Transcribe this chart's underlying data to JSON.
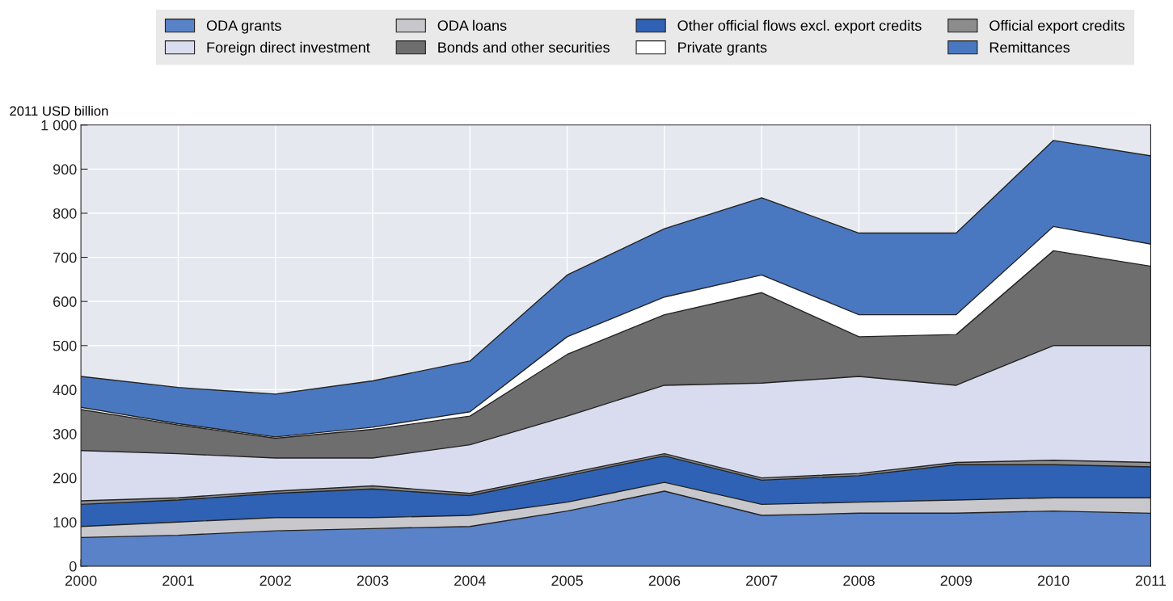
{
  "chart_data": {
    "type": "area",
    "stacked": true,
    "ylabel": "2011 USD billion",
    "x": [
      2000,
      2001,
      2002,
      2003,
      2004,
      2005,
      2006,
      2007,
      2008,
      2009,
      2010,
      2011
    ],
    "xlim": [
      2000,
      2011
    ],
    "xticks": [
      2000,
      2001,
      2002,
      2003,
      2004,
      2005,
      2006,
      2007,
      2008,
      2009,
      2010,
      2011
    ],
    "ylim": [
      0,
      1000
    ],
    "yticks": [
      0,
      100,
      200,
      300,
      400,
      500,
      600,
      700,
      800,
      900,
      {
        "value": 1000,
        "label": "1 000"
      }
    ],
    "grid": true,
    "legend": "top",
    "series": [
      {
        "name": "ODA grants",
        "color": "#5a82c8",
        "values": [
          65,
          70,
          80,
          85,
          90,
          125,
          170,
          115,
          120,
          120,
          125,
          120
        ]
      },
      {
        "name": "ODA loans",
        "color": "#c8c8cc",
        "values": [
          25,
          30,
          30,
          25,
          25,
          20,
          20,
          25,
          25,
          30,
          30,
          35
        ]
      },
      {
        "name": "Other official flows excl. export credits",
        "color": "#2f62b4",
        "values": [
          50,
          50,
          55,
          65,
          45,
          60,
          60,
          55,
          60,
          80,
          75,
          70
        ]
      },
      {
        "name": "Official export credits",
        "color": "#8c8c8c",
        "values": [
          8,
          5,
          5,
          7,
          5,
          5,
          5,
          5,
          5,
          5,
          10,
          10
        ]
      },
      {
        "name": "Foreign direct investment",
        "color": "#d8dcee",
        "values": [
          114,
          100,
          75,
          63,
          110,
          130,
          155,
          215,
          220,
          175,
          260,
          265
        ]
      },
      {
        "name": "Bonds and other securities",
        "color": "#6e6e6e",
        "values": [
          93,
          65,
          45,
          65,
          65,
          140,
          160,
          205,
          90,
          115,
          215,
          180
        ]
      },
      {
        "name": "Private grants",
        "color": "#ffffff",
        "values": [
          5,
          3,
          3,
          5,
          10,
          40,
          40,
          40,
          50,
          45,
          55,
          50
        ]
      },
      {
        "name": "Remittances",
        "color": "#4a78c0",
        "values": [
          70,
          82,
          97,
          105,
          115,
          140,
          155,
          175,
          185,
          185,
          195,
          200
        ]
      }
    ]
  }
}
